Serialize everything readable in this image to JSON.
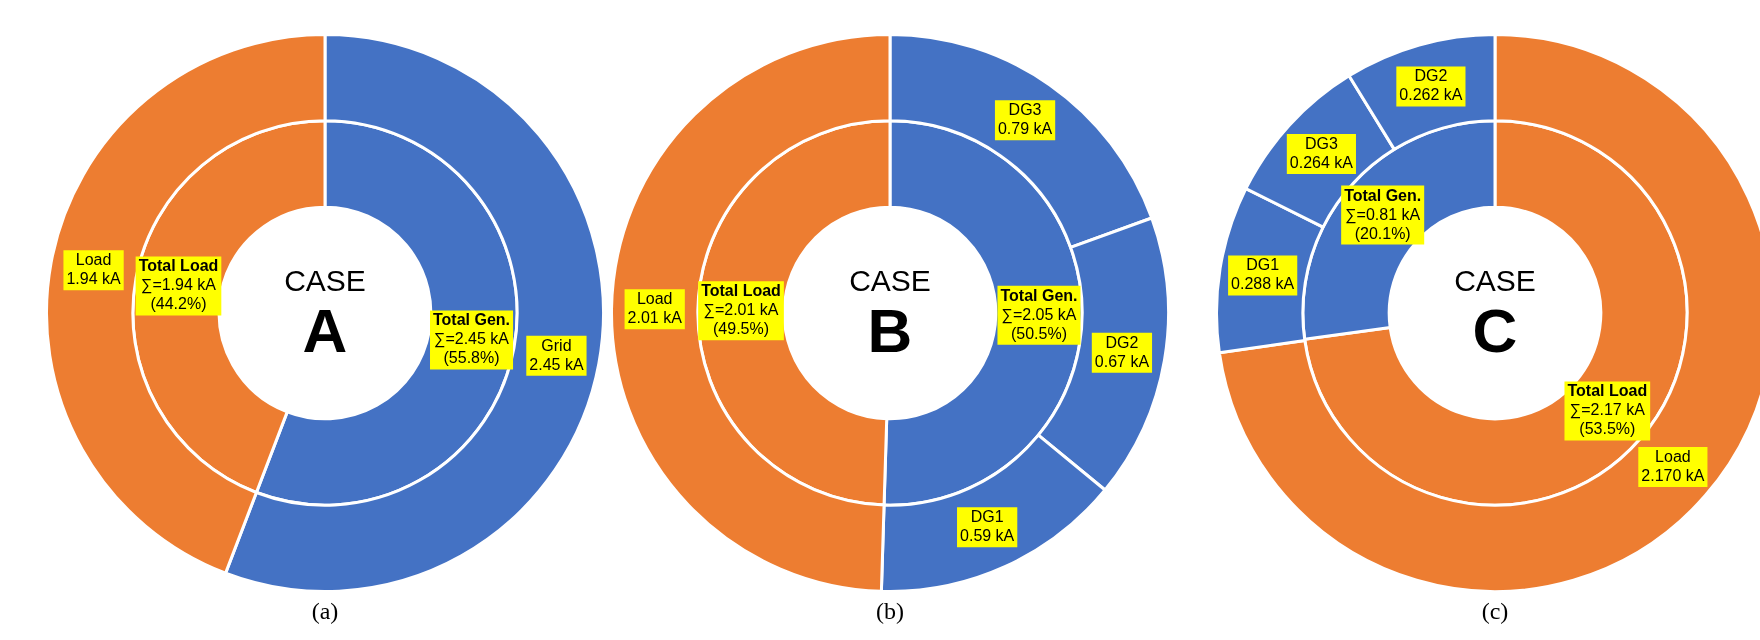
{
  "chart_data": [
    {
      "type": "donut",
      "title": "(a)",
      "annotations": [
        "CASE",
        "A"
      ],
      "series": [
        {
          "values": [
            2.45,
            1.94
          ],
          "colors": [
            "#4472c4",
            "#ed7d31"
          ],
          "value_labels": [
            "Total Gen.\n∑=2.45 kA\n(55.8%)",
            "Total Load\n∑=1.94 kA\n(44.2%)"
          ]
        },
        {
          "values": [
            2.45,
            1.94
          ],
          "colors": [
            "#4472c4",
            "#ed7d31"
          ],
          "value_labels": [
            "Grid\n2.45 kA",
            "Load\n1.94 kA"
          ]
        }
      ]
    },
    {
      "type": "donut",
      "title": "(b)",
      "annotations": [
        "CASE",
        "B"
      ],
      "series": [
        {
          "values": [
            2.05,
            2.01
          ],
          "colors": [
            "#4472c4",
            "#ed7d31"
          ],
          "value_labels": [
            "Total Gen.\n∑=2.05 kA\n(50.5%)",
            "Total Load\n∑=2.01 kA\n(49.5%)"
          ]
        },
        {
          "values": [
            0.79,
            0.67,
            0.59,
            2.01
          ],
          "colors": [
            "#4472c4",
            "#4472c4",
            "#4472c4",
            "#ed7d31"
          ],
          "value_labels": [
            "DG3\n0.79 kA",
            "DG2\n0.67 kA",
            "DG1\n0.59 kA",
            "Load\n2.01 kA"
          ]
        }
      ]
    },
    {
      "type": "donut",
      "title": "(c)",
      "annotations": [
        "CASE",
        "C"
      ],
      "series": [
        {
          "values": [
            2.17,
            0.81
          ],
          "colors": [
            "#ed7d31",
            "#4472c4"
          ],
          "value_labels": [
            "Total Load\n∑=2.17 kA\n(53.5%)",
            "Total Gen.\n∑=0.81 kA\n(20.1%)"
          ]
        },
        {
          "values": [
            2.17,
            0.288,
            0.264,
            0.262
          ],
          "colors": [
            "#ed7d31",
            "#4472c4",
            "#4472c4",
            "#4472c4"
          ],
          "value_labels": [
            "Load\n2.170 kA",
            "DG1\n0.288 kA",
            "DG3\n0.264 kA",
            "DG2\n0.262 kA"
          ]
        }
      ]
    }
  ]
}
